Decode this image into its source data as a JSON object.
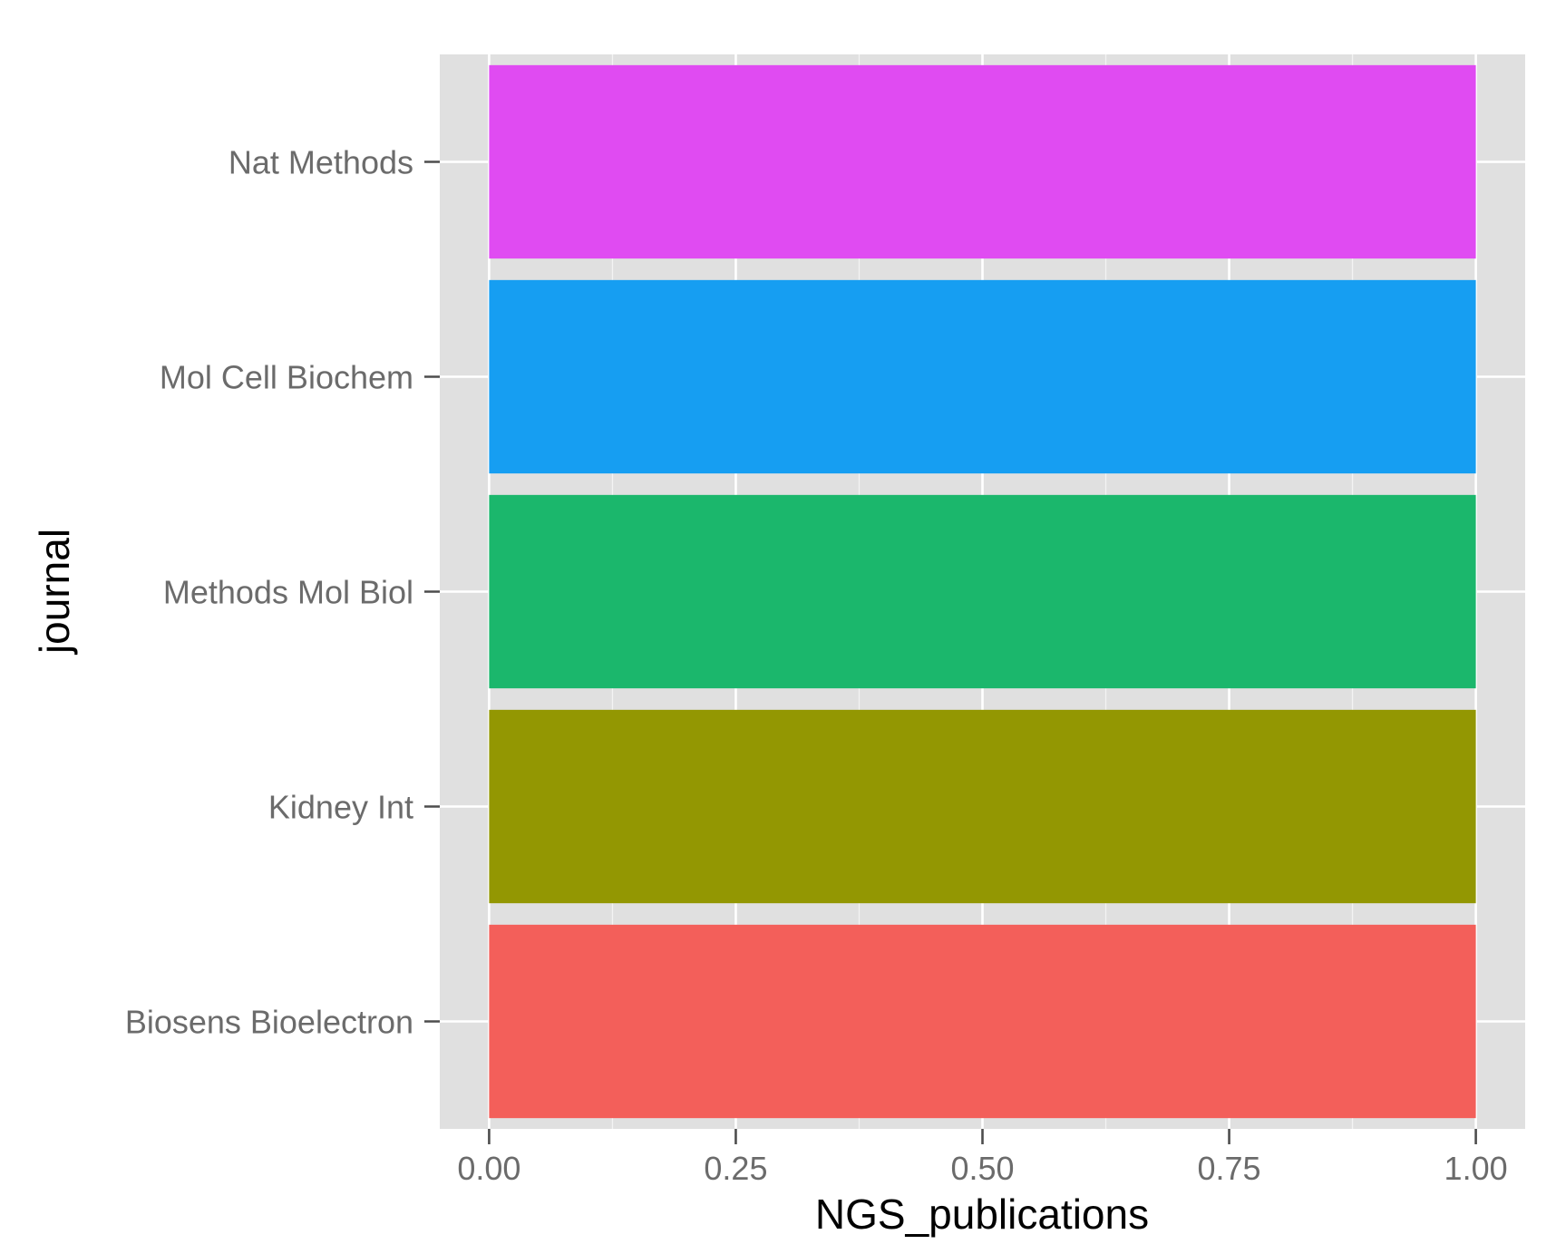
{
  "chart_data": {
    "type": "bar",
    "orientation": "horizontal",
    "title": "",
    "xlabel": "NGS_publications",
    "ylabel": "journal",
    "categories": [
      "Biosens Bioelectron",
      "Kidney Int",
      "Methods Mol Biol",
      "Mol Cell Biochem",
      "Nat Methods"
    ],
    "values": [
      1,
      1,
      1,
      1,
      1
    ],
    "colors": [
      "#F35F5A",
      "#939702",
      "#1BB76C",
      "#169EF2",
      "#E04BF2"
    ],
    "xlim": [
      -0.05,
      1.05
    ],
    "x_ticks": [
      0,
      0.25,
      0.5,
      0.75,
      1
    ],
    "x_tick_labels": [
      "0.00",
      "0.25",
      "0.50",
      "0.75",
      "1.00"
    ],
    "grid": true,
    "panel_background": "#E0E0E0",
    "grid_color": "#FFFFFF",
    "legend": "none"
  }
}
